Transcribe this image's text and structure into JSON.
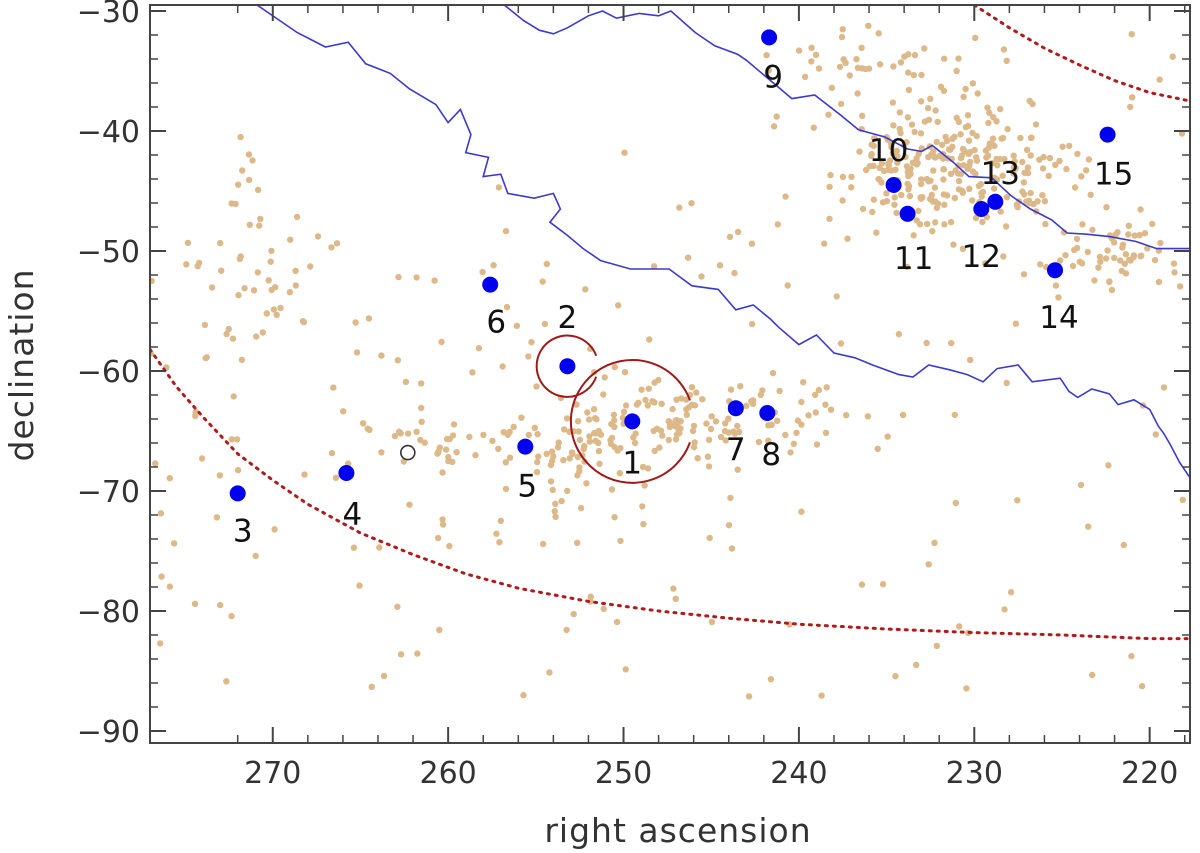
{
  "chart_data": {
    "type": "scatter",
    "title": "",
    "xlabel": "right ascension",
    "ylabel": "declination",
    "xlim": [
      277,
      217.7
    ],
    "ylim": [
      -91,
      -29.5
    ],
    "x_ticks": [
      270,
      260,
      250,
      240,
      230,
      220
    ],
    "y_ticks": [
      -30,
      -40,
      -50,
      -60,
      -70,
      -80,
      -90
    ],
    "grid": false,
    "legend": "none",
    "colors": {
      "background_points": "#ddb98a",
      "sources": "#0000ee",
      "circles": "#a01818",
      "boundary": "#3a3ad0",
      "dotted_curve": "#b01a1a",
      "small_circle": "#333333"
    },
    "labeled_sources": [
      {
        "label": "1",
        "ra": 249.5,
        "dec": -64.2
      },
      {
        "label": "2",
        "ra": 253.2,
        "dec": -59.6
      },
      {
        "label": "3",
        "ra": 272.0,
        "dec": -70.2
      },
      {
        "label": "4",
        "ra": 265.8,
        "dec": -68.5
      },
      {
        "label": "5",
        "ra": 255.6,
        "dec": -66.3
      },
      {
        "label": "6",
        "ra": 257.6,
        "dec": -52.8
      },
      {
        "label": "7",
        "ra": 243.6,
        "dec": -63.1
      },
      {
        "label": "8",
        "ra": 241.8,
        "dec": -63.5
      },
      {
        "label": "9",
        "ra": 241.7,
        "dec": -32.2
      },
      {
        "label": "10",
        "ra": 234.6,
        "dec": -44.5
      },
      {
        "label": "11",
        "ra": 233.8,
        "dec": -46.9
      },
      {
        "label": "12",
        "ra": 229.6,
        "dec": -46.5
      },
      {
        "label": "13",
        "ra": 228.8,
        "dec": -45.9
      },
      {
        "label": "14",
        "ra": 225.4,
        "dec": -51.6
      },
      {
        "label": "15",
        "ra": 222.4,
        "dec": -40.3
      }
    ],
    "circles": [
      {
        "ra": 249.5,
        "dec": -64.2,
        "radius_deg": 3.5
      },
      {
        "ra": 253.2,
        "dec": -59.6,
        "radius_deg": 1.75
      }
    ],
    "small_marker": {
      "ra": 262.3,
      "dec": -66.8
    },
    "boundary_lines": [
      [
        [
          270.9,
          -29.5
        ],
        [
          268.6,
          -31.8
        ],
        [
          267.0,
          -33.0
        ],
        [
          265.7,
          -32.6
        ],
        [
          264.7,
          -34.4
        ],
        [
          263.3,
          -35.2
        ],
        [
          262.2,
          -36.5
        ],
        [
          260.7,
          -37.8
        ],
        [
          260.0,
          -39.3
        ],
        [
          259.3,
          -38.2
        ],
        [
          258.7,
          -40.3
        ],
        [
          259.0,
          -41.8
        ],
        [
          257.7,
          -42.2
        ],
        [
          258.0,
          -43.8
        ],
        [
          257.0,
          -43.6
        ],
        [
          256.6,
          -45.2
        ],
        [
          255.1,
          -45.6
        ],
        [
          254.0,
          -45.2
        ],
        [
          253.6,
          -46.5
        ],
        [
          254.2,
          -47.6
        ],
        [
          253.2,
          -48.7
        ],
        [
          252.3,
          -49.8
        ],
        [
          251.3,
          -50.8
        ],
        [
          249.6,
          -51.5
        ],
        [
          247.4,
          -51.5
        ],
        [
          246.1,
          -52.9
        ],
        [
          244.6,
          -53.2
        ],
        [
          243.6,
          -54.9
        ],
        [
          242.6,
          -54.5
        ],
        [
          241.6,
          -55.7
        ],
        [
          241.2,
          -56.3
        ],
        [
          240.0,
          -57.8
        ],
        [
          239.0,
          -57.0
        ],
        [
          238.0,
          -58.5
        ],
        [
          236.8,
          -58.9
        ],
        [
          235.8,
          -59.5
        ],
        [
          234.3,
          -60.3
        ],
        [
          233.5,
          -60.5
        ],
        [
          232.6,
          -59.5
        ],
        [
          231.4,
          -59.9
        ],
        [
          230.4,
          -60.3
        ],
        [
          229.5,
          -60.9
        ],
        [
          228.7,
          -59.8
        ],
        [
          227.5,
          -59.5
        ],
        [
          226.7,
          -60.9
        ],
        [
          225.1,
          -60.6
        ],
        [
          224.6,
          -61.7
        ],
        [
          224.1,
          -62.2
        ],
        [
          223.3,
          -61.5
        ],
        [
          222.3,
          -61.9
        ],
        [
          221.8,
          -62.8
        ],
        [
          220.9,
          -62.4
        ],
        [
          220.0,
          -63.2
        ],
        [
          219.5,
          -64.6
        ],
        [
          219.2,
          -65.2
        ],
        [
          218.8,
          -66.2
        ],
        [
          218.3,
          -67.6
        ],
        [
          217.7,
          -68.9
        ]
      ],
      [
        [
          256.8,
          -29.5
        ],
        [
          255.7,
          -30.8
        ],
        [
          254.8,
          -31.6
        ],
        [
          254.0,
          -31.9
        ],
        [
          253.2,
          -31.4
        ],
        [
          252.0,
          -30.4
        ],
        [
          251.2,
          -30.0
        ],
        [
          250.4,
          -30.6
        ],
        [
          249.1,
          -30.2
        ],
        [
          248.0,
          -30.4
        ],
        [
          247.3,
          -30.0
        ],
        [
          245.9,
          -31.8
        ],
        [
          244.8,
          -32.9
        ],
        [
          243.5,
          -33.6
        ],
        [
          243.0,
          -34.1
        ],
        [
          241.7,
          -35.7
        ],
        [
          240.4,
          -37.3
        ],
        [
          239.1,
          -37.0
        ],
        [
          237.6,
          -38.7
        ],
        [
          236.6,
          -39.9
        ],
        [
          235.1,
          -40.5
        ],
        [
          233.8,
          -41.5
        ],
        [
          233.0,
          -41.7
        ],
        [
          232.4,
          -41.2
        ],
        [
          231.2,
          -42.6
        ],
        [
          230.3,
          -43.8
        ],
        [
          229.0,
          -43.9
        ],
        [
          227.9,
          -45.4
        ],
        [
          226.8,
          -46.5
        ],
        [
          225.6,
          -47.4
        ],
        [
          224.7,
          -48.5
        ],
        [
          223.6,
          -48.6
        ],
        [
          222.3,
          -48.8
        ],
        [
          220.8,
          -49.2
        ],
        [
          219.6,
          -49.8
        ],
        [
          217.7,
          -49.8
        ]
      ]
    ],
    "dotted_curves": [
      [
        [
          277.0,
          -58.2
        ],
        [
          275.5,
          -61.3
        ],
        [
          274.0,
          -63.8
        ],
        [
          272.0,
          -66.9
        ],
        [
          270.0,
          -69.1
        ],
        [
          268.0,
          -71.1
        ],
        [
          265.0,
          -73.5
        ],
        [
          262.0,
          -75.3
        ],
        [
          259.0,
          -76.9
        ],
        [
          256.0,
          -78.1
        ],
        [
          252.0,
          -79.2
        ],
        [
          248.0,
          -80.0
        ],
        [
          244.0,
          -80.6
        ],
        [
          240.0,
          -81.1
        ],
        [
          235.0,
          -81.5
        ],
        [
          230.0,
          -81.8
        ],
        [
          225.0,
          -82.0
        ],
        [
          220.0,
          -82.3
        ],
        [
          217.7,
          -82.3
        ]
      ],
      [
        [
          230.0,
          -29.5
        ],
        [
          228.0,
          -31.4
        ],
        [
          226.0,
          -33.1
        ],
        [
          224.0,
          -34.5
        ],
        [
          222.0,
          -35.8
        ],
        [
          220.0,
          -36.8
        ],
        [
          217.7,
          -37.5
        ]
      ]
    ]
  }
}
